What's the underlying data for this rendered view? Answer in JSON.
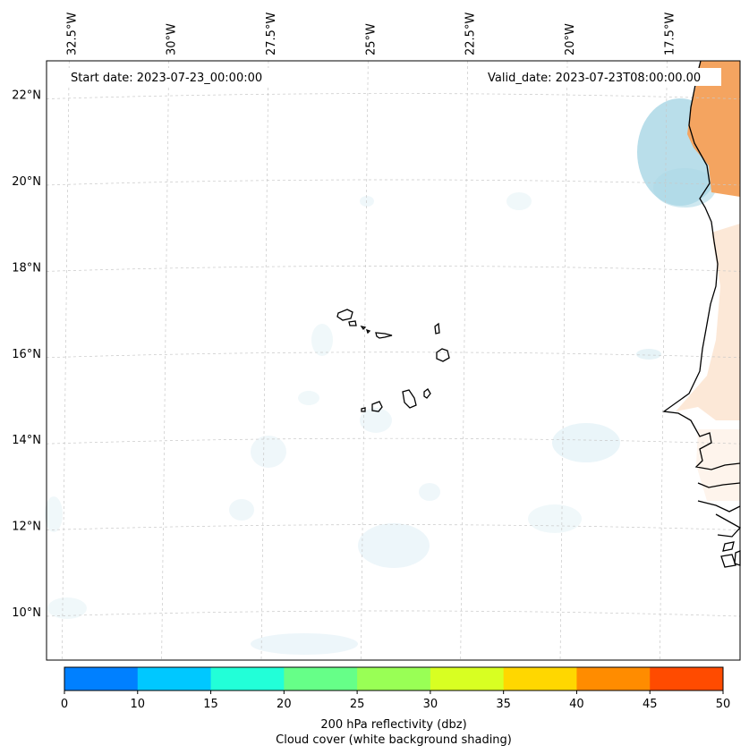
{
  "map": {
    "start_date": "Start date: 2023-07-23_00:00:00",
    "valid_date": "Valid_date: 2023-07-23T08:00:00.00",
    "longitudes": [
      {
        "label": "32.5°W",
        "value": -32.5
      },
      {
        "label": "30°W",
        "value": -30.0
      },
      {
        "label": "27.5°W",
        "value": -27.5
      },
      {
        "label": "25°W",
        "value": -25.0
      },
      {
        "label": "22.5°W",
        "value": -22.5
      },
      {
        "label": "20°W",
        "value": -20.0
      },
      {
        "label": "17.5°W",
        "value": -17.5
      }
    ],
    "latitudes": [
      {
        "label": "22°N",
        "value": 22
      },
      {
        "label": "20°N",
        "value": 20
      },
      {
        "label": "18°N",
        "value": 18
      },
      {
        "label": "16°N",
        "value": 16
      },
      {
        "label": "14°N",
        "value": 14
      },
      {
        "label": "12°N",
        "value": 12
      },
      {
        "label": "10°N",
        "value": 10
      }
    ],
    "lon_range": [
      -33.0,
      -15.6
    ],
    "lat_range": [
      8.9,
      22.8
    ]
  },
  "colorbar": {
    "ticks": [
      "0",
      "10",
      "15",
      "20",
      "25",
      "30",
      "35",
      "40",
      "45",
      "50"
    ],
    "colors": [
      "#0080ff",
      "#00c8ff",
      "#22ffd8",
      "#66ff88",
      "#99ff55",
      "#d8ff22",
      "#ffd700",
      "#ff8c00",
      "#ff4b00"
    ],
    "label_line1": "200 hPa reflectivity (dbz)",
    "label_line2": "Cloud cover (white background shading)"
  },
  "colors": {
    "cloud_blue": "#add8e6",
    "land_orange": "#f4a460",
    "coastline": "#000000",
    "grid": "#c8c8c8"
  }
}
